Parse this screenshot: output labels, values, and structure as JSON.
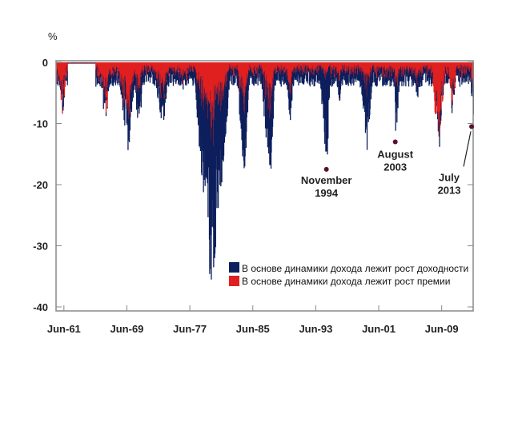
{
  "chart_data": {
    "type": "bar",
    "title": "",
    "ylabel": "%",
    "xlabel": "",
    "ylim": [
      -40,
      0
    ],
    "xlim": [
      1960.5,
      2013.5
    ],
    "yticks": [
      0,
      -10,
      -20,
      -30,
      -40
    ],
    "ytick_labels": [
      "0",
      "-10",
      "-20",
      "-30",
      "-40"
    ],
    "xticks": [
      1961.5,
      1969.5,
      1977.5,
      1985.5,
      1993.5,
      2001.5,
      2009.5
    ],
    "xtick_labels": [
      "Jun-61",
      "Jun-69",
      "Jun-77",
      "Jun-85",
      "Jun-93",
      "Jun-01",
      "Jun-09"
    ],
    "series": [
      {
        "name": "В основе динамики дохода лежит рост доходности",
        "color": "#0d1f5c"
      },
      {
        "name": "В основе динамики дохода лежит рост премии",
        "color": "#e02020"
      }
    ],
    "episodes": [
      {
        "start": 1960.6,
        "trough": 1961.3,
        "end": 1961.8,
        "depth": 9,
        "yield_share": 0.1
      },
      {
        "start": 1965.8,
        "trough": 1966.7,
        "end": 1967.6,
        "depth": 10,
        "yield_share": 0.3
      },
      {
        "start": 1968.3,
        "trough": 1969.6,
        "end": 1970.6,
        "depth": 15,
        "yield_share": 0.4
      },
      {
        "start": 1970.4,
        "trough": 1970.9,
        "end": 1971.6,
        "depth": 13,
        "yield_share": 0.5
      },
      {
        "start": 1972.8,
        "trough": 1974.0,
        "end": 1974.9,
        "depth": 11,
        "yield_share": 0.5
      },
      {
        "start": 1976.0,
        "trough": 1976.6,
        "end": 1977.2,
        "depth": 5,
        "yield_share": 0.4
      },
      {
        "start": 1978.0,
        "trough": 1980.2,
        "end": 1982.6,
        "depth": 38,
        "yield_share": 0.7
      },
      {
        "start": 1983.4,
        "trough": 1984.4,
        "end": 1985.0,
        "depth": 20,
        "yield_share": 0.6
      },
      {
        "start": 1986.4,
        "trough": 1987.7,
        "end": 1988.3,
        "depth": 20,
        "yield_share": 0.6
      },
      {
        "start": 1989.5,
        "trough": 1990.2,
        "end": 1990.8,
        "depth": 10,
        "yield_share": 0.5
      },
      {
        "start": 1993.9,
        "trough": 1994.85,
        "end": 1995.3,
        "depth": 17.5,
        "yield_share": 0.85
      },
      {
        "start": 1996.0,
        "trough": 1996.4,
        "end": 1996.9,
        "depth": 8,
        "yield_share": 0.6
      },
      {
        "start": 1998.8,
        "trough": 2000.0,
        "end": 2000.7,
        "depth": 15,
        "yield_share": 0.7
      },
      {
        "start": 2003.4,
        "trough": 2003.6,
        "end": 2004.2,
        "depth": 13,
        "yield_share": 0.6
      },
      {
        "start": 2005.0,
        "trough": 2006.4,
        "end": 2007.0,
        "depth": 6,
        "yield_share": 0.5
      },
      {
        "start": 2008.3,
        "trough": 2009.0,
        "end": 2009.9,
        "depth": 17,
        "yield_share": 0.1
      },
      {
        "start": 2010.4,
        "trough": 2010.8,
        "end": 2011.3,
        "depth": 10,
        "yield_share": 0.2
      },
      {
        "start": 2013.0,
        "trough": 2013.45,
        "end": 2013.5,
        "depth": 10.5,
        "yield_share": 0.5
      }
    ],
    "annotations": [
      {
        "label_line1": "November",
        "label_line2": "1994",
        "x": 1994.85,
        "y": -17.5
      },
      {
        "label_line1": "August",
        "label_line2": "2003",
        "x": 2003.6,
        "y": -13
      },
      {
        "label_line1": "July",
        "label_line2": "2013",
        "x": 2013.3,
        "y": -10.5
      }
    ],
    "legend_position": "bottom-right"
  }
}
